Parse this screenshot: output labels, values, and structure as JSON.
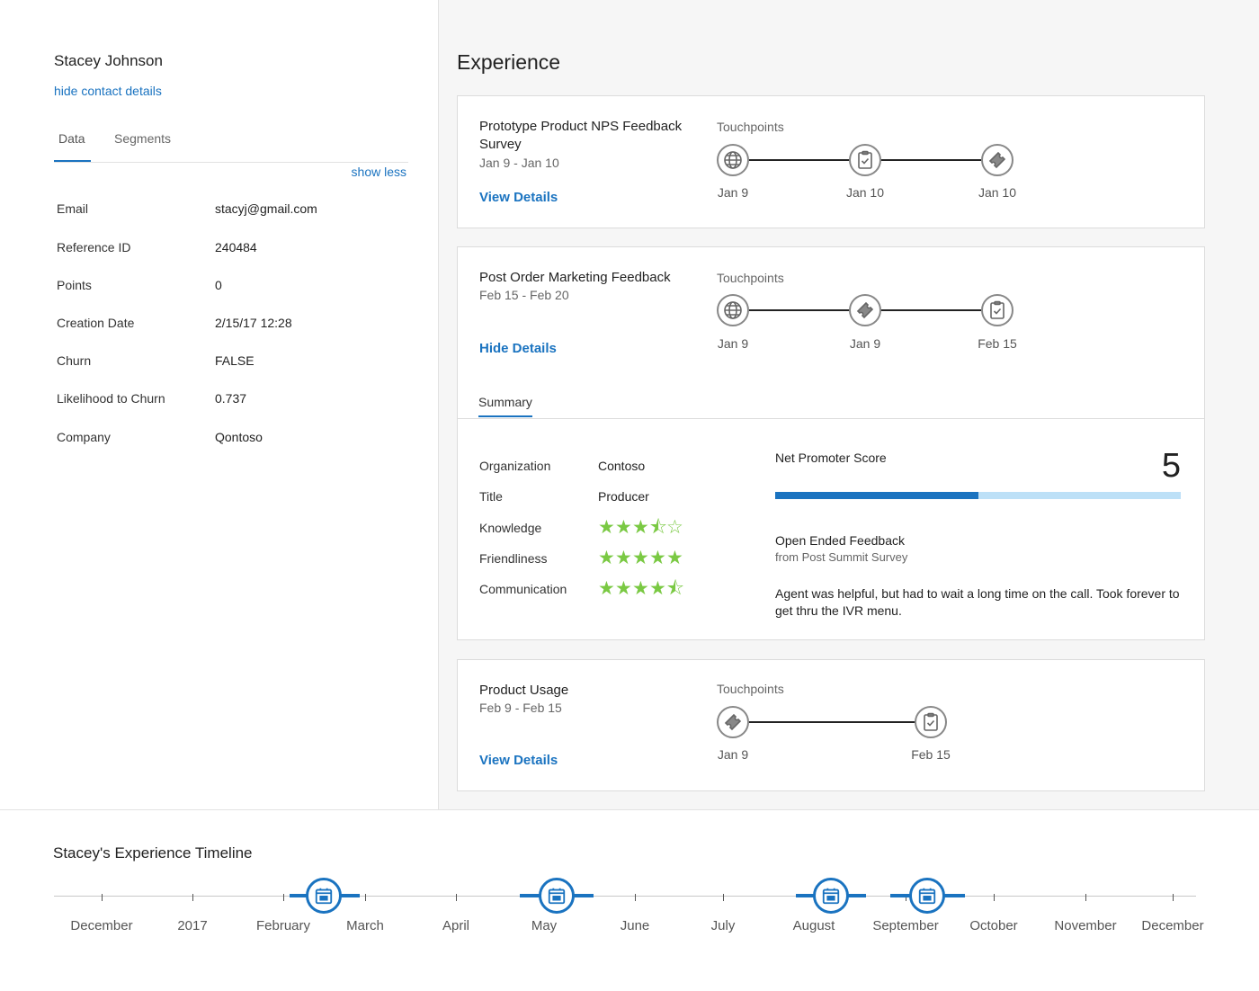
{
  "contact": {
    "name": "Stacey Johnson",
    "hide_link": "hide contact details",
    "tabs": [
      "Data",
      "Segments"
    ],
    "show_less": "show less",
    "fields": [
      {
        "label": "Email",
        "value": "stacyj@gmail.com"
      },
      {
        "label": "Reference ID",
        "value": "240484"
      },
      {
        "label": "Points",
        "value": "0"
      },
      {
        "label": "Creation Date",
        "value": "2/15/17 12:28"
      },
      {
        "label": "Churn",
        "value": "FALSE"
      },
      {
        "label": "Likelihood to Churn",
        "value": "0.737"
      },
      {
        "label": "Company",
        "value": "Qontoso"
      }
    ]
  },
  "experience": {
    "title": "Experience",
    "touchpoints_label": "Touchpoints",
    "cards": [
      {
        "title_line1": "Prototype Product NPS Feedback",
        "title_line2": "Survey",
        "dates": "Jan 9 - Jan 10",
        "link": "View Details",
        "touchpoints": [
          {
            "icon": "globe-icon",
            "date": "Jan 9"
          },
          {
            "icon": "clipboard-icon",
            "date": "Jan 10"
          },
          {
            "icon": "ticket-icon",
            "date": "Jan 10"
          }
        ]
      },
      {
        "title_line1": "Post Order Marketing Feedback",
        "dates": "Feb 15 - Feb 20",
        "link": "Hide Details",
        "touchpoints": [
          {
            "icon": "globe-icon",
            "date": "Jan 9"
          },
          {
            "icon": "ticket-icon",
            "date": "Jan 9"
          },
          {
            "icon": "clipboard-icon",
            "date": "Feb 15"
          }
        ],
        "summary": {
          "tab": "Summary",
          "organization_label": "Organization",
          "organization": "Contoso",
          "title_label": "Title",
          "title": "Producer",
          "ratings": [
            {
              "label": "Knowledge",
              "stars": 3.5
            },
            {
              "label": "Friendliness",
              "stars": 5
            },
            {
              "label": "Communication",
              "stars": 4.5
            }
          ],
          "nps_label": "Net Promoter Score",
          "nps_value": "5",
          "nps_fraction": 0.5,
          "feedback_title": "Open Ended Feedback",
          "feedback_source": "from Post Summit Survey",
          "feedback_text": "Agent was helpful, but had to wait a long time on the call. Took forever to get thru the IVR menu."
        }
      },
      {
        "title_line1": "Product Usage",
        "dates": "Feb 9 - Feb 15",
        "link": "View Details",
        "touchpoints": [
          {
            "icon": "ticket-icon",
            "date": "Jan 9"
          },
          {
            "icon": "clipboard-icon",
            "date": "Feb 15"
          }
        ]
      }
    ]
  },
  "timeline": {
    "title": "Stacey's Experience Timeline",
    "labels": [
      "December",
      "2017",
      "February",
      "March",
      "April",
      "May",
      "June",
      "July",
      "August",
      "September",
      "October",
      "November",
      "December"
    ],
    "event_icon": "calendar-icon",
    "accent": "#1a73c0"
  },
  "colors": {
    "accent": "#1a73c0",
    "star": "#7ac943",
    "nps_track": "#bde0f7"
  }
}
